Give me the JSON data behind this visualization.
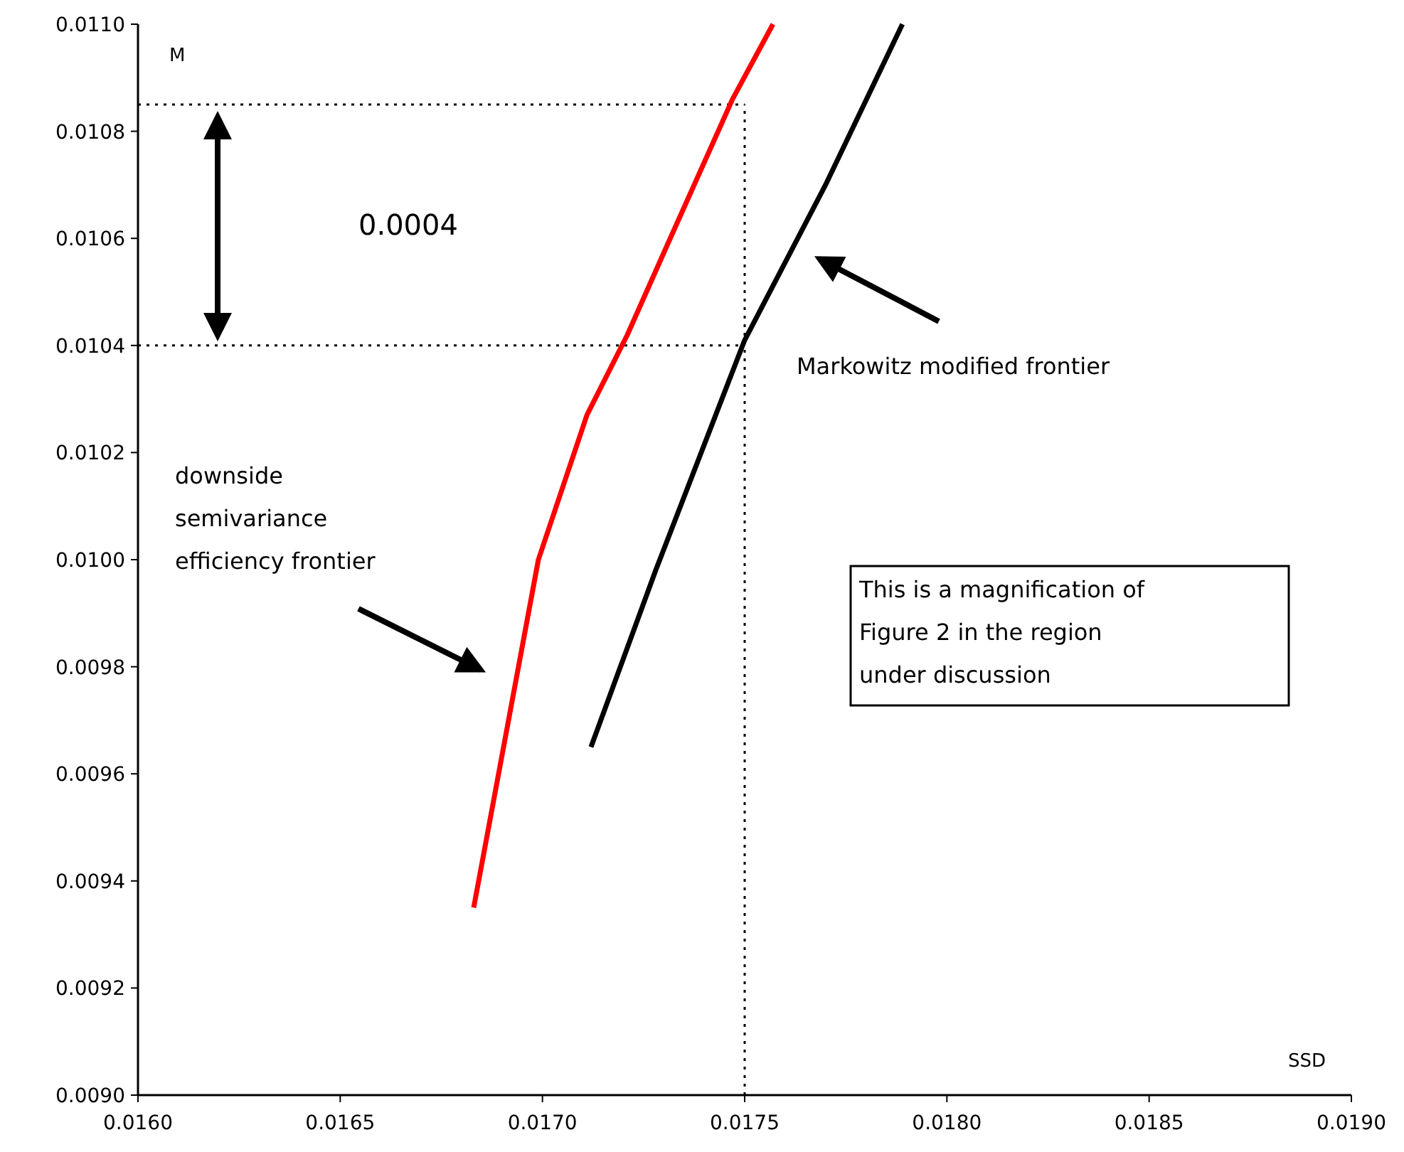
{
  "chart_data": {
    "type": "line",
    "xlabel": "SSD",
    "ylabel": "M",
    "xlim": [
      0.016,
      0.019
    ],
    "xticks": [
      {
        "value": 0.016,
        "label": "0.0160"
      },
      {
        "value": 0.0165,
        "label": "0.0165"
      },
      {
        "value": 0.017,
        "label": "0.0170"
      },
      {
        "value": 0.0175,
        "label": "0.0175"
      },
      {
        "value": 0.018,
        "label": "0.0180"
      },
      {
        "value": 0.0185,
        "label": "0.0185"
      },
      {
        "value": 0.019,
        "label": "0.0190"
      }
    ],
    "ylim": [
      0.009,
      0.011
    ],
    "yticks": [
      {
        "value": 0.009,
        "label": "0.0090"
      },
      {
        "value": 0.0092,
        "label": "0.0092"
      },
      {
        "value": 0.0094,
        "label": "0.0094"
      },
      {
        "value": 0.0096,
        "label": "0.0096"
      },
      {
        "value": 0.0098,
        "label": "0.0098"
      },
      {
        "value": 0.01,
        "label": "0.0100"
      },
      {
        "value": 0.0102,
        "label": "0.0102"
      },
      {
        "value": 0.0104,
        "label": "0.0104"
      },
      {
        "value": 0.0106,
        "label": "0.0106"
      },
      {
        "value": 0.0108,
        "label": "0.0108"
      },
      {
        "value": 0.011,
        "label": "0.0110"
      }
    ],
    "grid": false,
    "marker": "none",
    "line_style": "solid",
    "series": [
      {
        "color": "#ff0000",
        "x": [
          0.01683,
          0.01699,
          0.01711,
          0.01721,
          0.01731,
          0.01747,
          0.01757
        ],
        "values": [
          0.00935,
          0.01,
          0.01027,
          0.01042,
          0.01059,
          0.01086,
          0.011
        ]
      },
      {
        "color": "#000000",
        "x": [
          0.01712,
          0.01728,
          0.0175,
          0.0177,
          0.01789
        ],
        "values": [
          0.00965,
          0.00998,
          0.01041,
          0.0107,
          0.011
        ]
      }
    ],
    "ref_lines": [
      {
        "axis": "y",
        "value": 0.01085,
        "line_style": "dotted"
      },
      {
        "axis": "y",
        "value": 0.0104,
        "line_style": "dotted"
      },
      {
        "axis": "x",
        "value": 0.0175,
        "line_style": "dotted"
      }
    ],
    "annotations": [
      "0.0004",
      "Markowitz modified frontier",
      "downside\nsemivariance\nefficiency frontier",
      "This is a magnification of\nFigure 2 in the region\nunder discussion"
    ]
  }
}
